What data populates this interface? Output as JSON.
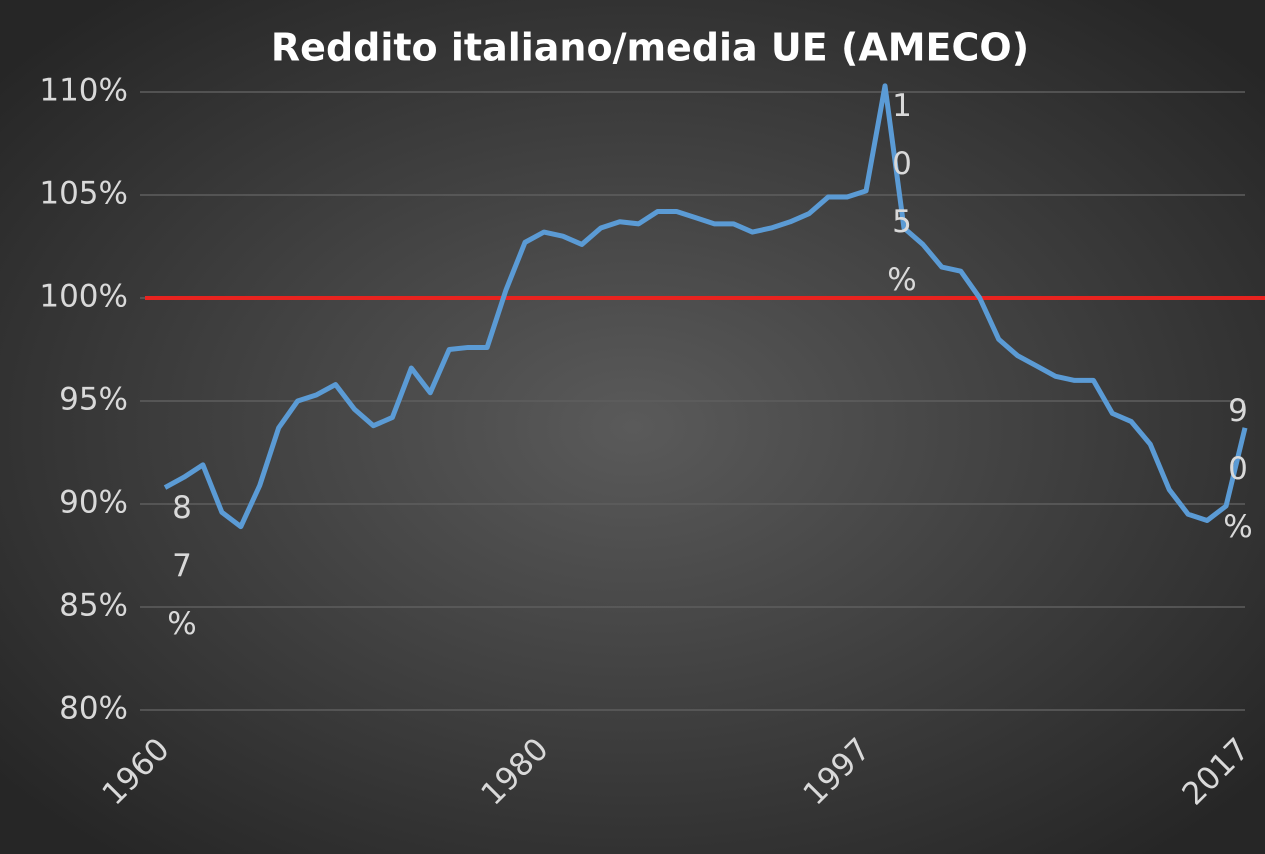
{
  "chart_data": {
    "type": "line",
    "title": "Reddito italiano/media UE (AMECO)",
    "x": [
      1960,
      1961,
      1962,
      1963,
      1964,
      1965,
      1966,
      1967,
      1968,
      1969,
      1970,
      1971,
      1972,
      1973,
      1974,
      1975,
      1976,
      1977,
      1978,
      1979,
      1980,
      1981,
      1982,
      1983,
      1984,
      1985,
      1986,
      1987,
      1988,
      1989,
      1990,
      1991,
      1992,
      1993,
      1994,
      1995,
      1996,
      1997,
      1998,
      1999,
      2000,
      2001,
      2002,
      2003,
      2004,
      2005,
      2006,
      2007,
      2008,
      2009,
      2010,
      2011,
      2012,
      2013,
      2014,
      2015,
      2016,
      2017
    ],
    "series": [
      {
        "name": "Reddito italiano/media UE",
        "color": "#5b9bd5",
        "values": [
          90.8,
          91.3,
          91.9,
          89.6,
          88.9,
          90.9,
          93.7,
          95.0,
          95.3,
          95.8,
          94.6,
          93.8,
          94.2,
          96.6,
          95.4,
          97.5,
          97.6,
          97.6,
          100.4,
          102.7,
          103.2,
          103.0,
          102.6,
          103.4,
          103.7,
          103.6,
          104.2,
          104.2,
          103.9,
          103.6,
          103.6,
          103.2,
          103.4,
          103.7,
          104.1,
          104.9,
          104.9,
          105.2,
          110.3,
          103.4,
          102.6,
          101.5,
          101.3,
          100.0,
          98.0,
          97.2,
          96.7,
          96.2,
          96.0,
          96.0,
          94.4,
          94.0,
          92.9,
          90.7,
          89.5,
          89.2,
          89.9,
          93.7
        ]
      }
    ],
    "xlim": [
      1960,
      2017
    ],
    "xticks": [
      1960,
      1980,
      1997,
      2017
    ],
    "ylim": [
      80,
      110
    ],
    "yticks": [
      {
        "value": 80,
        "label": "80%"
      },
      {
        "value": 85,
        "label": "85%"
      },
      {
        "value": 90,
        "label": "90%"
      },
      {
        "value": 95,
        "label": "95%"
      },
      {
        "value": 100,
        "label": "100%"
      },
      {
        "value": 105,
        "label": "105%"
      },
      {
        "value": 110,
        "label": "110%"
      }
    ],
    "grid": true,
    "reference_line": {
      "value": 100,
      "color": "#e8231f"
    },
    "annotations": [
      {
        "text": "87%"
      },
      {
        "text": "105%"
      },
      {
        "text": "90%"
      }
    ]
  }
}
